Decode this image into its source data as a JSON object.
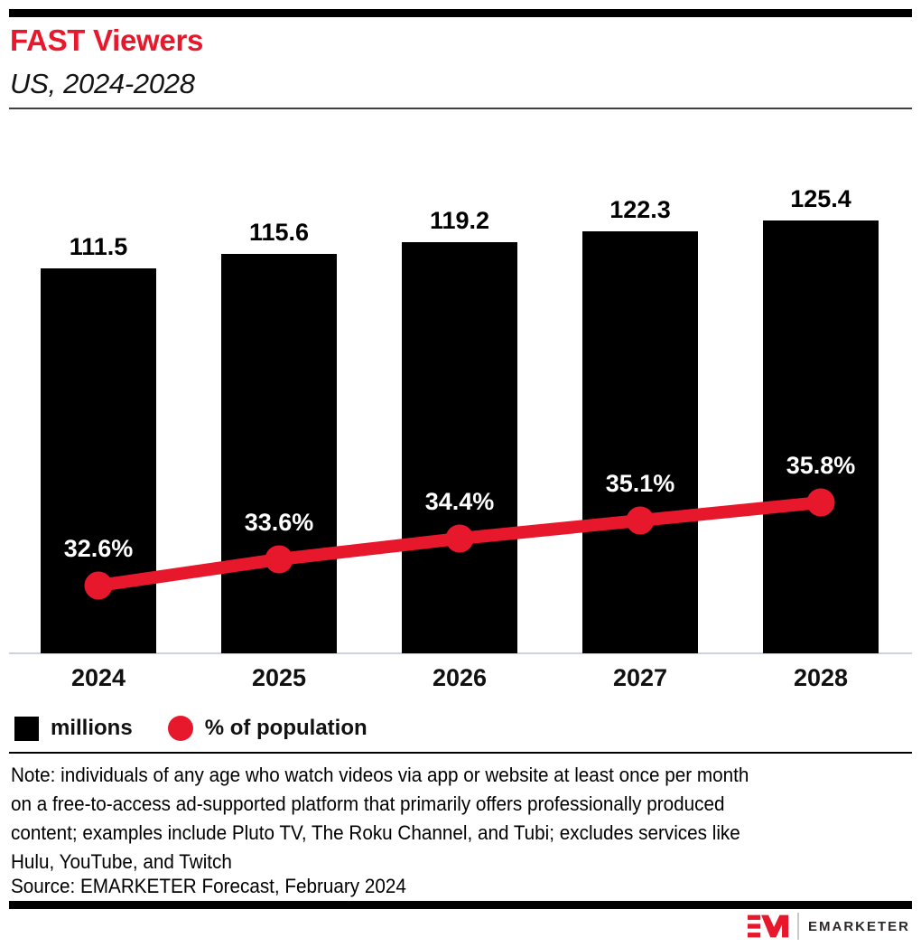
{
  "header": {
    "title": "FAST Viewers",
    "subtitle": "US, 2024-2028"
  },
  "chart_data": {
    "type": "bar",
    "combo": "bar+line",
    "title": "FAST Viewers",
    "subtitle": "US, 2024-2028",
    "categories": [
      "2024",
      "2025",
      "2026",
      "2027",
      "2028"
    ],
    "series": [
      {
        "name": "millions",
        "type": "bar",
        "color": "#000000",
        "values": [
          111.5,
          115.6,
          119.2,
          122.3,
          125.4
        ],
        "labels": [
          "111.5",
          "115.6",
          "119.2",
          "122.3",
          "125.4"
        ]
      },
      {
        "name": "% of population",
        "type": "line",
        "color": "#e8182c",
        "values": [
          32.6,
          33.6,
          34.4,
          35.1,
          35.8
        ],
        "labels": [
          "32.6%",
          "33.6%",
          "34.4%",
          "35.1%",
          "35.8%"
        ]
      }
    ],
    "xlabel": "",
    "ylabel": "",
    "bar_ylim": [
      0,
      140
    ],
    "grid": false,
    "data_labels": true,
    "legend_position": "bottom-left"
  },
  "legend": {
    "items": [
      {
        "label": "millions",
        "swatch": "square",
        "color": "#000000"
      },
      {
        "label": "% of population",
        "swatch": "circle",
        "color": "#e8182c"
      }
    ]
  },
  "footnote": {
    "note_lines": [
      "Note: individuals of any age who watch videos via app or website at least once per month",
      "on a free-to-access ad-supported platform that primarily offers professionally produced",
      "content; examples include Pluto TV, The Roku Channel, and Tubi; excludes services like",
      "Hulu, YouTube, and Twitch"
    ],
    "source": "Source: EMARKETER Forecast, February 2024"
  },
  "branding": {
    "logo_text": "EMARKETER"
  },
  "colors": {
    "accent_red": "#e8182c",
    "bar_black": "#000000",
    "baseline_rule": "#ccd3e0",
    "title_red": "#e8182c"
  }
}
